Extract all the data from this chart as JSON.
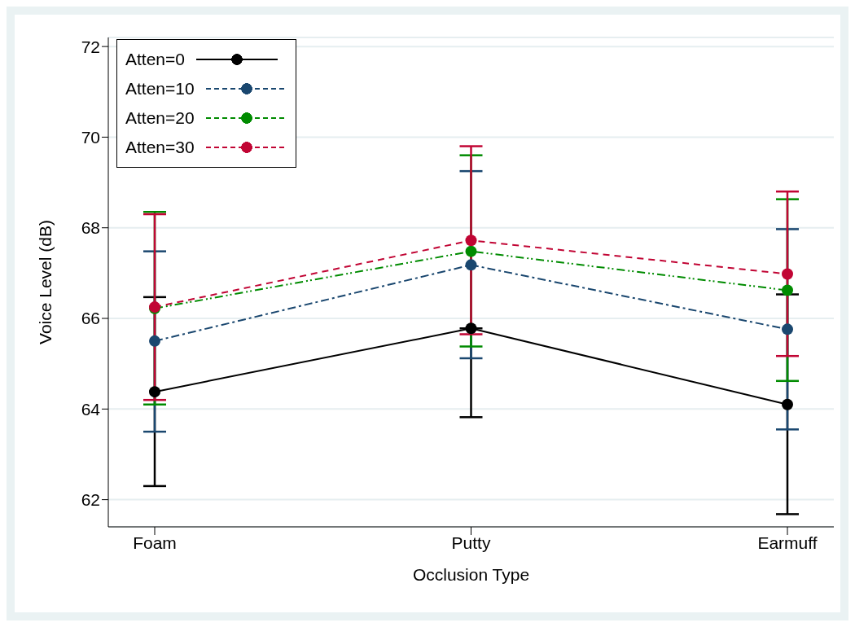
{
  "chart_data": {
    "type": "line",
    "xlabel": "Occlusion Type",
    "ylabel": "Voice Level (dB)",
    "categories": [
      "Foam",
      "Putty",
      "Earmuff"
    ],
    "ylim": [
      61.4,
      72.2
    ],
    "yticks": [
      62,
      64,
      66,
      68,
      70,
      72
    ],
    "grid": "y",
    "legend": "top left",
    "marker": "circle",
    "series": [
      {
        "name": "Atten=0",
        "color": "#000000",
        "line_style": "solid",
        "values": [
          64.38,
          65.78,
          64.1
        ],
        "errors": [
          [
            62.3,
            66.47
          ],
          [
            63.82,
            65.78
          ],
          [
            61.68,
            66.53
          ]
        ]
      },
      {
        "name": "Atten=10",
        "color": "#1a476f",
        "line_style": "dashed",
        "values": [
          65.5,
          67.18,
          65.76
        ],
        "errors": [
          [
            63.5,
            67.48
          ],
          [
            65.12,
            69.25
          ],
          [
            63.55,
            67.97
          ]
        ]
      },
      {
        "name": "Atten=20",
        "color": "#008b00",
        "line_style": "dashed",
        "values": [
          66.22,
          67.48,
          66.62
        ],
        "errors": [
          [
            64.1,
            68.35
          ],
          [
            65.38,
            69.6
          ],
          [
            64.62,
            68.63
          ]
        ]
      },
      {
        "name": "Atten=30",
        "color": "#c10534",
        "line_style": "dashed",
        "values": [
          66.25,
          67.72,
          66.98
        ],
        "errors": [
          [
            64.2,
            68.3
          ],
          [
            65.65,
            69.8
          ],
          [
            65.17,
            68.8
          ]
        ]
      }
    ]
  }
}
